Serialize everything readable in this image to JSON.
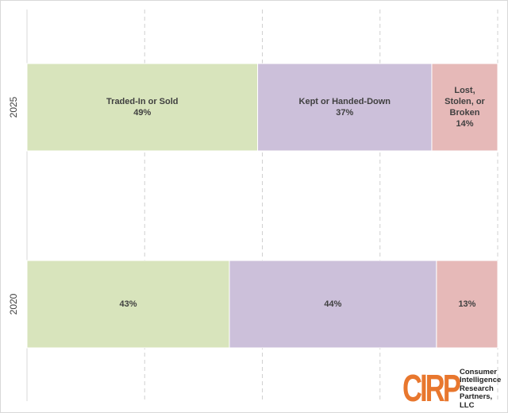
{
  "chart_data": {
    "type": "bar",
    "orientation": "horizontal",
    "stacked": true,
    "percent_scale": true,
    "xlim": [
      0,
      100
    ],
    "grid": "vertical-dashed",
    "categories": [
      "2025",
      "2020"
    ],
    "series": [
      {
        "name": "Traded-In or Sold",
        "color": "#d8e4bc",
        "values": [
          49,
          43
        ],
        "labels": [
          "Traded-In or Sold\n49%",
          "43%"
        ]
      },
      {
        "name": "Kept or Handed-Down",
        "color": "#ccc0da",
        "values": [
          37,
          44
        ],
        "labels": [
          "Kept or Handed-Down\n37%",
          "44%"
        ]
      },
      {
        "name": "Lost, Stolen, or Broken",
        "color": "#e6b9b8",
        "values": [
          14,
          13
        ],
        "labels": [
          "Lost,\nStolen, or\nBroken\n14%",
          "13%"
        ]
      }
    ]
  },
  "logo": {
    "mark": "CIRP",
    "lines": [
      "Consumer",
      "Intelligence",
      "Research",
      "Partners, LLC"
    ],
    "color": "#e8772e"
  }
}
